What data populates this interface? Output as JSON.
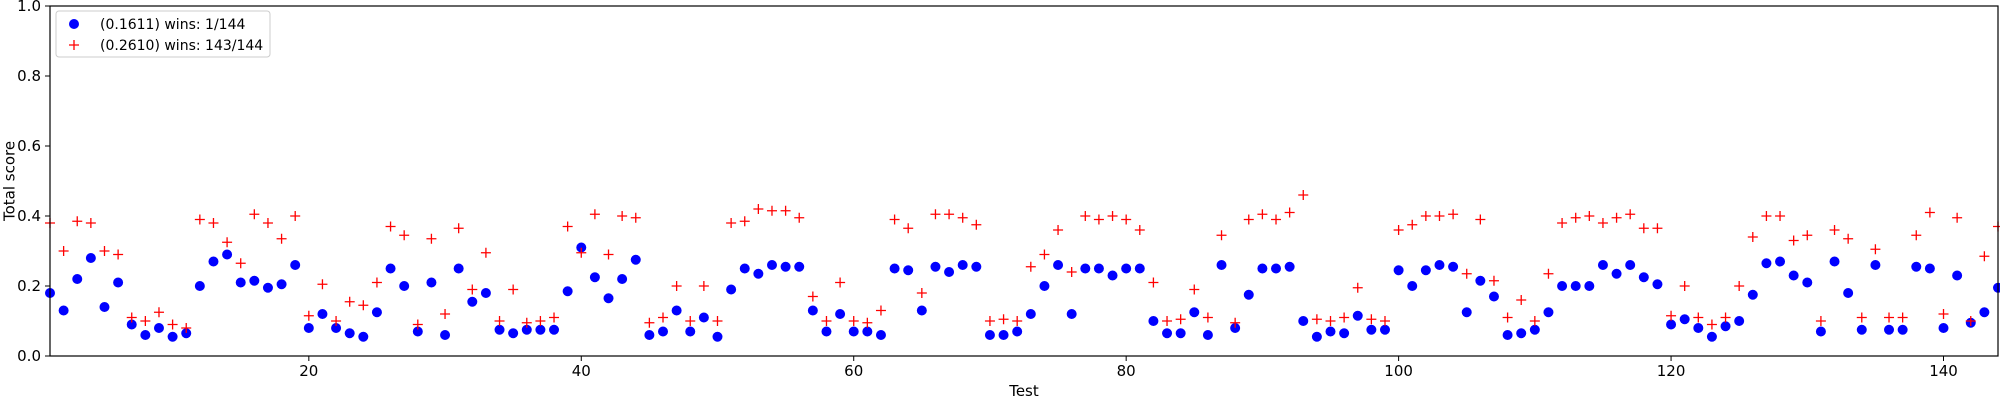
{
  "chart_data": {
    "type": "scatter",
    "title": "",
    "xlabel": "Test",
    "ylabel": "Total score",
    "xlim": [
      1,
      144
    ],
    "ylim": [
      0.0,
      1.0
    ],
    "xticks": [
      20,
      40,
      60,
      80,
      100,
      120,
      140
    ],
    "xtick_labels": [
      "20",
      "40",
      "60",
      "80",
      "100",
      "120",
      "140"
    ],
    "yticks": [
      0.0,
      0.2,
      0.4,
      0.6,
      0.8,
      1.0
    ],
    "ytick_labels": [
      "0.0",
      "0.2",
      "0.4",
      "0.6",
      "0.8",
      "1.0"
    ],
    "grid": false,
    "legend_position": "top-left",
    "series": [
      {
        "name": "(0.1611) wins: 1/144",
        "marker": "circle",
        "color": "#0000ff",
        "x": [
          1,
          2,
          3,
          4,
          5,
          6,
          7,
          8,
          9,
          10,
          11,
          12,
          13,
          14,
          15,
          16,
          17,
          18,
          19,
          20,
          21,
          22,
          23,
          24,
          25,
          26,
          27,
          28,
          29,
          30,
          31,
          32,
          33,
          34,
          35,
          36,
          37,
          38,
          39,
          40,
          41,
          42,
          43,
          44,
          45,
          46,
          47,
          48,
          49,
          50,
          51,
          52,
          53,
          54,
          55,
          56,
          57,
          58,
          59,
          60,
          61,
          62,
          63,
          64,
          65,
          66,
          67,
          68,
          69,
          70,
          71,
          72,
          73,
          74,
          75,
          76,
          77,
          78,
          79,
          80,
          81,
          82,
          83,
          84,
          85,
          86,
          87,
          88,
          89,
          90,
          91,
          92,
          93,
          94,
          95,
          96,
          97,
          98,
          99,
          100,
          101,
          102,
          103,
          104,
          105,
          106,
          107,
          108,
          109,
          110,
          111,
          112,
          113,
          114,
          115,
          116,
          117,
          118,
          119,
          120,
          121,
          122,
          123,
          124,
          125,
          126,
          127,
          128,
          129,
          130,
          131,
          132,
          133,
          134,
          135,
          136,
          137,
          138,
          139,
          140,
          141,
          142,
          143,
          144
        ],
        "y": [
          0.18,
          0.13,
          0.22,
          0.28,
          0.14,
          0.21,
          0.09,
          0.06,
          0.08,
          0.055,
          0.065,
          0.2,
          0.27,
          0.29,
          0.21,
          0.215,
          0.195,
          0.205,
          0.26,
          0.08,
          0.12,
          0.08,
          0.065,
          0.055,
          0.125,
          0.25,
          0.2,
          0.07,
          0.21,
          0.06,
          0.25,
          0.155,
          0.18,
          0.075,
          0.065,
          0.075,
          0.075,
          0.075,
          0.185,
          0.31,
          0.225,
          0.165,
          0.22,
          0.275,
          0.06,
          0.07,
          0.13,
          0.07,
          0.11,
          0.055,
          0.19,
          0.25,
          0.235,
          0.26,
          0.255,
          0.255,
          0.13,
          0.07,
          0.12,
          0.07,
          0.07,
          0.06,
          0.25,
          0.245,
          0.13,
          0.255,
          0.24,
          0.26,
          0.255,
          0.06,
          0.06,
          0.07,
          0.12,
          0.2,
          0.26,
          0.12,
          0.25,
          0.25,
          0.23,
          0.25,
          0.25,
          0.1,
          0.065,
          0.065,
          0.125,
          0.06,
          0.26,
          0.08,
          0.175,
          0.25,
          0.25,
          0.255,
          0.1,
          0.055,
          0.07,
          0.065,
          0.115,
          0.075,
          0.075,
          0.245,
          0.2,
          0.245,
          0.26,
          0.255,
          0.125,
          0.215,
          0.17,
          0.06,
          0.065,
          0.075,
          0.125,
          0.2,
          0.2,
          0.2,
          0.26,
          0.235,
          0.26,
          0.225,
          0.205,
          0.09,
          0.105,
          0.08,
          0.055,
          0.085,
          0.1,
          0.175,
          0.265,
          0.27,
          0.23,
          0.21,
          0.07,
          0.27,
          0.18,
          0.075,
          0.26,
          0.075,
          0.075,
          0.255,
          0.25,
          0.08,
          0.23,
          0.095,
          0.125,
          0.195
        ]
      },
      {
        "name": "(0.2610) wins: 143/144",
        "marker": "plus",
        "color": "#ff0000",
        "x": [
          1,
          2,
          3,
          4,
          5,
          6,
          7,
          8,
          9,
          10,
          11,
          12,
          13,
          14,
          15,
          16,
          17,
          18,
          19,
          20,
          21,
          22,
          23,
          24,
          25,
          26,
          27,
          28,
          29,
          30,
          31,
          32,
          33,
          34,
          35,
          36,
          37,
          38,
          39,
          40,
          41,
          42,
          43,
          44,
          45,
          46,
          47,
          48,
          49,
          50,
          51,
          52,
          53,
          54,
          55,
          56,
          57,
          58,
          59,
          60,
          61,
          62,
          63,
          64,
          65,
          66,
          67,
          68,
          69,
          70,
          71,
          72,
          73,
          74,
          75,
          76,
          77,
          78,
          79,
          80,
          81,
          82,
          83,
          84,
          85,
          86,
          87,
          88,
          89,
          90,
          91,
          92,
          93,
          94,
          95,
          96,
          97,
          98,
          99,
          100,
          101,
          102,
          103,
          104,
          105,
          106,
          107,
          108,
          109,
          110,
          111,
          112,
          113,
          114,
          115,
          116,
          117,
          118,
          119,
          120,
          121,
          122,
          123,
          124,
          125,
          126,
          127,
          128,
          129,
          130,
          131,
          132,
          133,
          134,
          135,
          136,
          137,
          138,
          139,
          140,
          141,
          142,
          143,
          144
        ],
        "y": [
          0.38,
          0.3,
          0.385,
          0.38,
          0.3,
          0.29,
          0.11,
          0.1,
          0.125,
          0.09,
          0.08,
          0.39,
          0.38,
          0.325,
          0.265,
          0.405,
          0.38,
          0.335,
          0.4,
          0.115,
          0.205,
          0.1,
          0.155,
          0.145,
          0.21,
          0.37,
          0.345,
          0.09,
          0.335,
          0.12,
          0.365,
          0.19,
          0.295,
          0.1,
          0.19,
          0.095,
          0.1,
          0.11,
          0.37,
          0.295,
          0.405,
          0.29,
          0.4,
          0.395,
          0.095,
          0.11,
          0.2,
          0.1,
          0.2,
          0.1,
          0.38,
          0.385,
          0.42,
          0.415,
          0.415,
          0.395,
          0.17,
          0.1,
          0.21,
          0.1,
          0.095,
          0.13,
          0.39,
          0.365,
          0.18,
          0.405,
          0.405,
          0.395,
          0.375,
          0.1,
          0.105,
          0.1,
          0.255,
          0.29,
          0.36,
          0.24,
          0.4,
          0.39,
          0.4,
          0.39,
          0.36,
          0.21,
          0.1,
          0.105,
          0.19,
          0.11,
          0.345,
          0.095,
          0.39,
          0.405,
          0.39,
          0.41,
          0.46,
          0.105,
          0.1,
          0.11,
          0.195,
          0.105,
          0.1,
          0.36,
          0.375,
          0.4,
          0.4,
          0.405,
          0.235,
          0.39,
          0.215,
          0.11,
          0.16,
          0.1,
          0.235,
          0.38,
          0.395,
          0.4,
          0.38,
          0.395,
          0.405,
          0.365,
          0.365,
          0.115,
          0.2,
          0.11,
          0.09,
          0.11,
          0.2,
          0.34,
          0.4,
          0.4,
          0.33,
          0.345,
          0.1,
          0.36,
          0.335,
          0.11,
          0.305,
          0.11,
          0.11,
          0.345,
          0.41,
          0.12,
          0.395,
          0.1,
          0.285,
          0.37
        ]
      }
    ]
  }
}
